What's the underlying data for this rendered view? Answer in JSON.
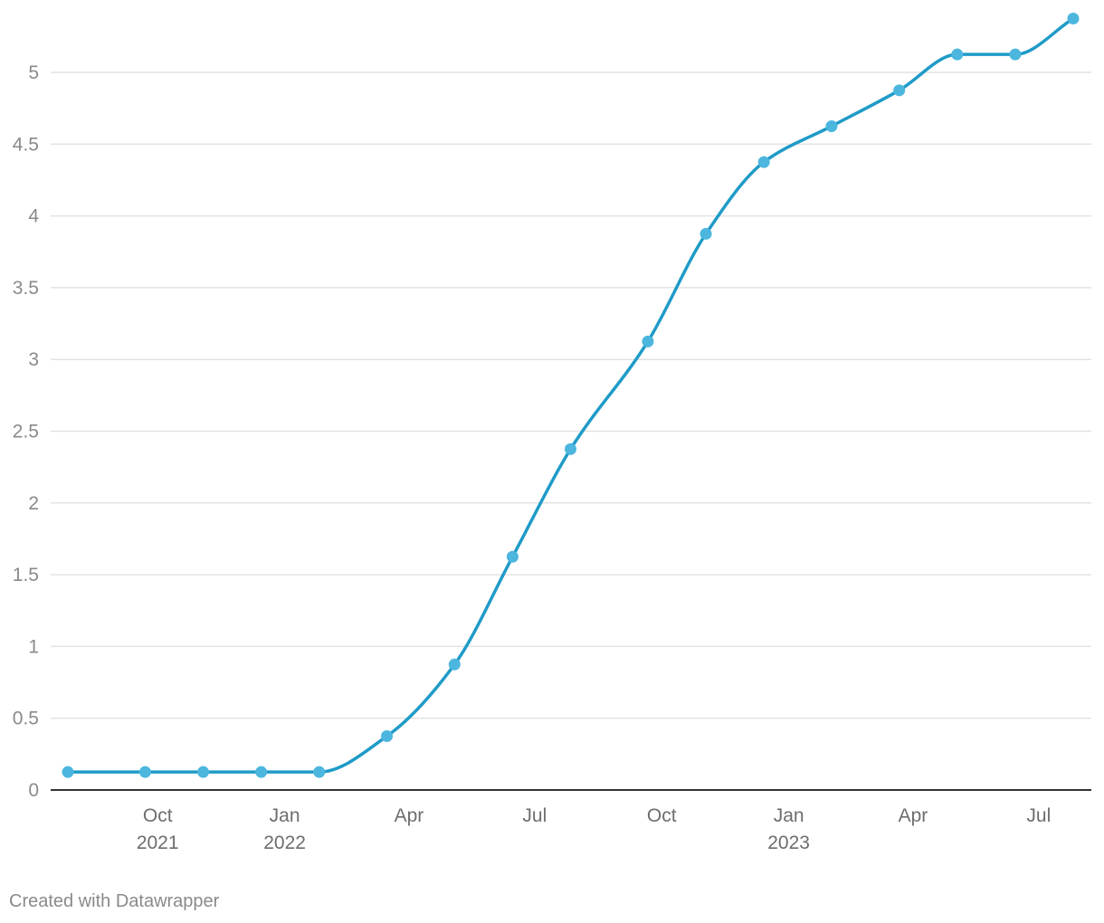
{
  "chart_data": {
    "type": "line",
    "title": "",
    "xlabel": "",
    "ylabel": "",
    "ylim": [
      0,
      5.4
    ],
    "grid": true,
    "y_ticks": [
      "0",
      "0.5",
      "1",
      "1.5",
      "2",
      "2.5",
      "3",
      "3.5",
      "4",
      "4.5",
      "5"
    ],
    "y_tick_values": [
      0,
      0.5,
      1,
      1.5,
      2,
      2.5,
      3,
      3.5,
      4,
      4.5,
      5
    ],
    "x_ticks": [
      {
        "date": "2021-10-01",
        "month": "Oct",
        "year": "2021"
      },
      {
        "date": "2022-01-01",
        "month": "Jan",
        "year": "2022"
      },
      {
        "date": "2022-04-01",
        "month": "Apr",
        "year": ""
      },
      {
        "date": "2022-07-01",
        "month": "Jul",
        "year": ""
      },
      {
        "date": "2022-10-01",
        "month": "Oct",
        "year": ""
      },
      {
        "date": "2023-01-01",
        "month": "Jan",
        "year": "2023"
      },
      {
        "date": "2023-04-01",
        "month": "Apr",
        "year": ""
      },
      {
        "date": "2023-07-01",
        "month": "Jul",
        "year": ""
      }
    ],
    "series": [
      {
        "color": "#1f9bc7",
        "marker_color": "#4cb6de",
        "points": [
          {
            "x": "2021-07-28",
            "y": 0.125
          },
          {
            "x": "2021-09-22",
            "y": 0.125
          },
          {
            "x": "2021-11-03",
            "y": 0.125
          },
          {
            "x": "2021-12-15",
            "y": 0.125
          },
          {
            "x": "2022-01-26",
            "y": 0.125
          },
          {
            "x": "2022-03-16",
            "y": 0.375
          },
          {
            "x": "2022-05-04",
            "y": 0.875
          },
          {
            "x": "2022-06-15",
            "y": 1.625
          },
          {
            "x": "2022-07-27",
            "y": 2.375
          },
          {
            "x": "2022-09-21",
            "y": 3.125
          },
          {
            "x": "2022-11-02",
            "y": 3.875
          },
          {
            "x": "2022-12-14",
            "y": 4.375
          },
          {
            "x": "2023-02-01",
            "y": 4.625
          },
          {
            "x": "2023-03-22",
            "y": 4.875
          },
          {
            "x": "2023-05-03",
            "y": 5.125
          },
          {
            "x": "2023-06-14",
            "y": 5.125
          },
          {
            "x": "2023-07-26",
            "y": 5.375
          }
        ]
      }
    ]
  },
  "footer": {
    "credit": "Created with Datawrapper"
  }
}
